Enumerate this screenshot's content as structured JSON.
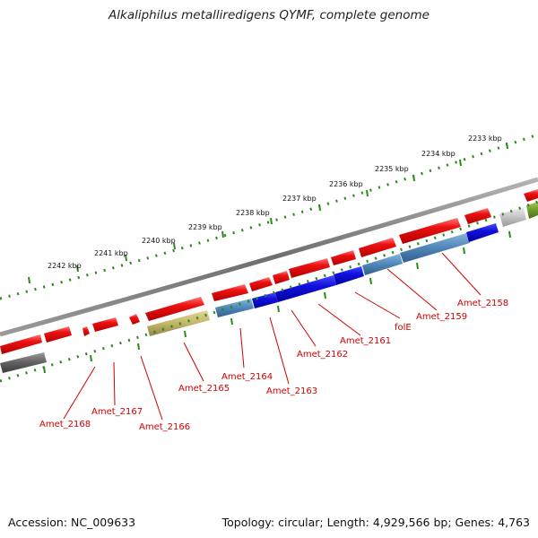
{
  "title": "Alkaliphilus metalliredigens QYMF, complete genome",
  "accession_label": "Accession: NC_009633",
  "topology_label": "Topology: circular; Length: 4,929,566 bp; Genes: 4,763",
  "kbp_ticks": [
    {
      "label": "2233 kbp"
    },
    {
      "label": "2234 kbp"
    },
    {
      "label": "2235 kbp"
    },
    {
      "label": "2236 kbp"
    },
    {
      "label": "2237 kbp"
    },
    {
      "label": "2238 kbp"
    },
    {
      "label": "2239 kbp"
    },
    {
      "label": "2240 kbp"
    },
    {
      "label": "2241 kbp"
    },
    {
      "label": "2242 kbp"
    }
  ],
  "gene_labels": [
    {
      "name": "Amet_2158"
    },
    {
      "name": "Amet_2159"
    },
    {
      "name": "folE"
    },
    {
      "name": "Amet_2161"
    },
    {
      "name": "Amet_2162"
    },
    {
      "name": "Amet_2163"
    },
    {
      "name": "Amet_2164"
    },
    {
      "name": "Amet_2165"
    },
    {
      "name": "Amet_2166"
    },
    {
      "name": "Amet_2167"
    },
    {
      "name": "Amet_2168"
    }
  ],
  "colors": {
    "forward_cds": "#ee1111",
    "reverse_cds": "#1111dd",
    "reverse_cds_light": "#4f86b8",
    "other_feature": "#c2b66a",
    "backbone": "#888888",
    "tick": "#2a8a1a",
    "label": "#d00000"
  }
}
